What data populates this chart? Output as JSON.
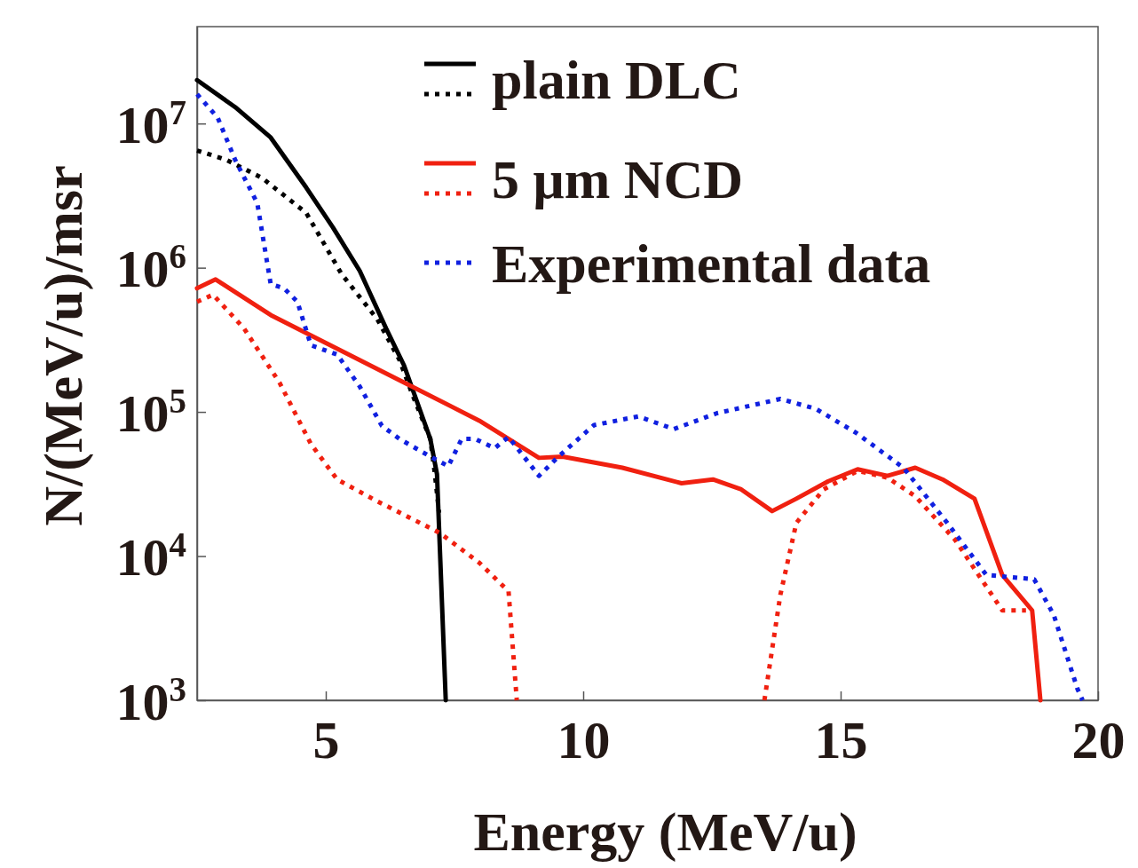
{
  "chart_data": {
    "type": "line",
    "xlabel": "Energy (MeV/u)",
    "ylabel": "N/(MeV/u)/msr",
    "log": "y",
    "xlim": [
      2.5,
      20
    ],
    "xticks": [
      5,
      10,
      15,
      20
    ],
    "ylim": [
      1000,
      47000000
    ],
    "yticks": [
      {
        "value": 1000,
        "label": "10$^{3}$"
      },
      {
        "value": 10000,
        "label": "10$^{4}$"
      },
      {
        "value": 100000,
        "label": "10$^{5}$"
      },
      {
        "value": 1000000,
        "label": "10$^{6}$"
      },
      {
        "value": 10000000,
        "label": "10$^{7}$"
      }
    ],
    "grid": false,
    "legend": "top right",
    "series": [
      {
        "name": "plain DLC",
        "color": "#000000",
        "line_style": "solid",
        "x": [
          2.5,
          3.24,
          3.93,
          4.62,
          5.14,
          5.66,
          5.83,
          6.17,
          6.52,
          7.03,
          7.16,
          7.33
        ],
        "values": [
          20000000,
          13000000,
          8000000,
          3600000,
          1900000,
          950000,
          700000,
          380000,
          210000,
          65000,
          37000,
          1000
        ]
      },
      {
        "color": "#000000",
        "line_style": "dotted",
        "x": [
          2.5,
          3.07,
          3.76,
          4.62,
          5.31,
          6.0,
          6.43,
          6.69,
          7.03,
          7.12,
          7.2
        ],
        "values": [
          6500000,
          5600000,
          4200000,
          2400000,
          900000,
          440000,
          230000,
          130000,
          65000,
          37000,
          20000
        ]
      },
      {
        "name": "5 μm NCD",
        "color": "#f02010",
        "line_style": "solid",
        "x": [
          2.5,
          2.86,
          3.93,
          6.52,
          7.98,
          9.14,
          9.6,
          10.76,
          11.91,
          12.52,
          13.07,
          13.67,
          14.14,
          14.76,
          15.33,
          15.91,
          16.45,
          16.98,
          17.6,
          18.14,
          18.72,
          18.88
        ],
        "values": [
          720000,
          830000,
          470000,
          160000,
          87000,
          48000,
          49000,
          41000,
          32000,
          34000,
          29000,
          20500,
          25000,
          33000,
          40000,
          36000,
          41000,
          34000,
          25000,
          7400,
          4200,
          1000
        ]
      },
      {
        "color": "#f02010",
        "line_style": "dotted",
        "x": [
          2.5,
          2.81,
          3.41,
          4.1,
          4.71,
          5.22,
          6.0,
          7.21,
          7.98,
          8.55,
          8.71,
          11,
          13.52,
          13.83,
          14.14,
          14.67,
          15.33,
          15.91,
          16.45,
          17.22,
          18.14,
          18.6
        ],
        "values": [
          580000,
          650000,
          380000,
          160000,
          60000,
          34000,
          24000,
          14500,
          9000,
          5700,
          1000,
          null,
          1000,
          5400,
          17000,
          29000,
          39000,
          35000,
          26000,
          13000,
          4200,
          4200
        ]
      },
      {
        "name": "Experimental data",
        "color": "#1020e0",
        "line_style": "dotted",
        "x": [
          2.5,
          2.9,
          3.24,
          3.67,
          3.93,
          4.19,
          4.45,
          4.71,
          5.22,
          5.66,
          6.09,
          6.43,
          7.03,
          7.38,
          7.64,
          7.9,
          8.28,
          8.55,
          9.14,
          9.52,
          10.21,
          11.07,
          11.76,
          12.6,
          13.83,
          14.52,
          15.29,
          16.22,
          17.07,
          17.83,
          18.76,
          19.14,
          19.6,
          19.7
        ],
        "values": [
          16000000,
          11000000,
          5600000,
          2800000,
          770000,
          720000,
          580000,
          290000,
          250000,
          150000,
          80000,
          65000,
          49000,
          42000,
          65000,
          65000,
          56000,
          67000,
          36000,
          49000,
          81000,
          93000,
          76000,
          98000,
          123000,
          105000,
          72000,
          41000,
          17000,
          7400,
          6900,
          3900,
          1200,
          1000
        ]
      }
    ]
  }
}
